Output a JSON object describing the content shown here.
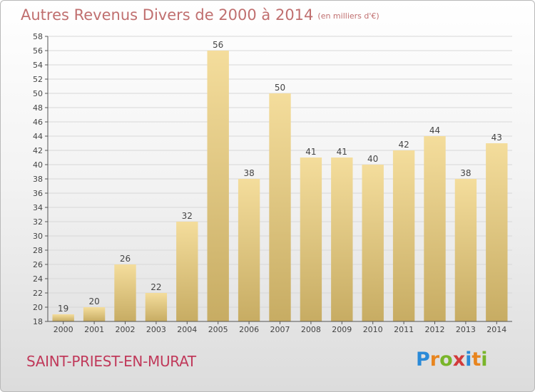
{
  "header": {
    "title": "Autres Revenus Divers de 2000 à 2014",
    "unit": "(en milliers d'€)"
  },
  "footer": {
    "place": "SAINT-PRIEST-EN-MURAT",
    "logo_letters": [
      "P",
      "r",
      "o",
      "x",
      "i",
      "t",
      "i"
    ],
    "logo_colors": [
      "#2a8ad8",
      "#e8851f",
      "#79b52a",
      "#d23b3b",
      "#2a8ad8",
      "#e8851f",
      "#79b52a"
    ]
  },
  "colors": {
    "title": "#c06f6f",
    "place": "#c0395a",
    "bar_top": "#f4dd9c",
    "bar_bottom": "#c7ac63",
    "grid": "#d8d8d8"
  },
  "chart_data": {
    "type": "bar",
    "categories": [
      "2000",
      "2001",
      "2002",
      "2003",
      "2004",
      "2005",
      "2006",
      "2007",
      "2008",
      "2009",
      "2010",
      "2011",
      "2012",
      "2013",
      "2014"
    ],
    "values": [
      19,
      20,
      26,
      22,
      32,
      56,
      38,
      50,
      41,
      41,
      40,
      42,
      44,
      38,
      43
    ],
    "ylim": [
      18,
      58
    ],
    "ytick_step": 2,
    "title": "Autres Revenus Divers de 2000 à 2014",
    "grid": true,
    "value_labels": true
  }
}
